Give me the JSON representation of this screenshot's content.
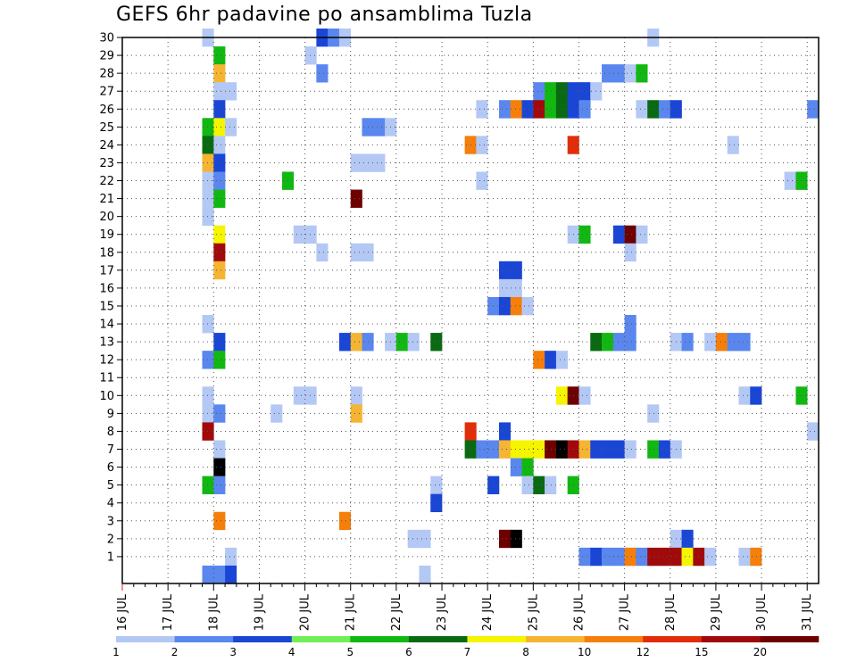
{
  "title": "GEFS 6hr padavine po ansamblima Tuzla",
  "chart_data": {
    "type": "heatmap",
    "title": "GEFS 6hr padavine po ansamblima Tuzla",
    "xlabel": "",
    "ylabel": "",
    "x_start": "16 JUL 00Z",
    "x_step_hours": 6,
    "x_ticks": [
      "16 JUL",
      "17 JUL",
      "18 JUL",
      "19 JUL",
      "20 JUL",
      "21 JUL",
      "22 JUL",
      "23 JUL",
      "24 JUL",
      "25 JUL",
      "26 JUL",
      "27 JUL",
      "28 JUL",
      "29 JUL",
      "30 JUL",
      "31 JUL"
    ],
    "y_ticks": [
      "1",
      "2",
      "3",
      "4",
      "5",
      "6",
      "7",
      "8",
      "9",
      "10",
      "11",
      "12",
      "13",
      "14",
      "15",
      "16",
      "17",
      "18",
      "19",
      "20",
      "21",
      "22",
      "23",
      "24",
      "25",
      "26",
      "27",
      "28",
      "29",
      "30"
    ],
    "grid": true,
    "colorbar": {
      "labels": [
        "1",
        "2",
        "3",
        "4",
        "5",
        "6",
        "7",
        "8",
        "10",
        "12",
        "15",
        "20"
      ],
      "colors": [
        "#b4c8f5",
        "#5a87ee",
        "#1a46d6",
        "#71ee55",
        "#12b812",
        "#0a6a12",
        "#f5f500",
        "#f5b432",
        "#f57f0a",
        "#e22d0a",
        "#a10a0a",
        "#6e0000"
      ]
    },
    "cells": [
      {
        "m": 30,
        "t": [
          [
            7,
            1
          ],
          [
            17,
            3
          ],
          [
            18,
            2
          ],
          [
            19,
            1
          ],
          [
            46,
            1
          ]
        ]
      },
      {
        "m": 29,
        "t": [
          [
            8,
            5
          ],
          [
            16,
            1
          ]
        ]
      },
      {
        "m": 28,
        "t": [
          [
            8,
            8
          ],
          [
            17,
            2
          ],
          [
            42,
            2
          ],
          [
            43,
            2
          ],
          [
            44,
            1
          ],
          [
            45,
            5
          ]
        ]
      },
      {
        "m": 27,
        "t": [
          [
            8,
            1
          ],
          [
            9,
            1
          ],
          [
            36,
            2
          ],
          [
            37,
            5
          ],
          [
            38,
            6
          ],
          [
            39,
            3
          ],
          [
            40,
            3
          ],
          [
            41,
            1
          ]
        ]
      },
      {
        "m": 26,
        "t": [
          [
            8,
            3
          ],
          [
            31,
            1
          ],
          [
            33,
            2
          ],
          [
            34,
            9
          ],
          [
            35,
            3
          ],
          [
            36,
            11
          ],
          [
            37,
            5
          ],
          [
            38,
            6
          ],
          [
            39,
            3
          ],
          [
            40,
            2
          ],
          [
            45,
            1
          ],
          [
            46,
            6
          ],
          [
            47,
            2
          ],
          [
            48,
            3
          ],
          [
            60,
            2
          ]
        ]
      },
      {
        "m": 25,
        "t": [
          [
            7,
            5
          ],
          [
            8,
            7
          ],
          [
            9,
            1
          ],
          [
            21,
            2
          ],
          [
            22,
            2
          ],
          [
            23,
            1
          ]
        ]
      },
      {
        "m": 24,
        "t": [
          [
            7,
            6
          ],
          [
            8,
            1
          ],
          [
            30,
            9
          ],
          [
            31,
            1
          ],
          [
            39,
            10
          ],
          [
            53,
            1
          ]
        ]
      },
      {
        "m": 23,
        "t": [
          [
            7,
            8
          ],
          [
            8,
            3
          ],
          [
            20,
            1
          ],
          [
            21,
            1
          ],
          [
            22,
            1
          ]
        ]
      },
      {
        "m": 22,
        "t": [
          [
            7,
            1
          ],
          [
            8,
            2
          ],
          [
            14,
            5
          ],
          [
            31,
            1
          ],
          [
            58,
            1
          ],
          [
            59,
            5
          ]
        ]
      },
      {
        "m": 21,
        "t": [
          [
            7,
            1
          ],
          [
            8,
            5
          ],
          [
            20,
            12
          ]
        ]
      },
      {
        "m": 20,
        "t": [
          [
            7,
            1
          ]
        ]
      },
      {
        "m": 19,
        "t": [
          [
            8,
            7
          ],
          [
            15,
            1
          ],
          [
            16,
            1
          ],
          [
            39,
            1
          ],
          [
            40,
            5
          ],
          [
            43,
            3
          ],
          [
            44,
            12
          ],
          [
            45,
            1
          ]
        ]
      },
      {
        "m": 18,
        "t": [
          [
            8,
            11
          ],
          [
            17,
            1
          ],
          [
            20,
            1
          ],
          [
            21,
            1
          ],
          [
            44,
            1
          ]
        ]
      },
      {
        "m": 17,
        "t": [
          [
            8,
            8
          ],
          [
            33,
            3
          ],
          [
            34,
            3
          ]
        ]
      },
      {
        "m": 16,
        "t": [
          [
            33,
            1
          ],
          [
            34,
            1
          ]
        ]
      },
      {
        "m": 15,
        "t": [
          [
            32,
            2
          ],
          [
            33,
            3
          ],
          [
            34,
            9
          ],
          [
            35,
            1
          ]
        ]
      },
      {
        "m": 14,
        "t": [
          [
            7,
            1
          ],
          [
            44,
            2
          ]
        ]
      },
      {
        "m": 13,
        "t": [
          [
            8,
            3
          ],
          [
            19,
            3
          ],
          [
            20,
            8
          ],
          [
            21,
            2
          ],
          [
            23,
            1
          ],
          [
            24,
            5
          ],
          [
            25,
            1
          ],
          [
            27,
            6
          ],
          [
            41,
            6
          ],
          [
            42,
            5
          ],
          [
            43,
            2
          ],
          [
            44,
            2
          ],
          [
            48,
            1
          ],
          [
            49,
            2
          ],
          [
            51,
            1
          ],
          [
            52,
            9
          ],
          [
            53,
            2
          ],
          [
            54,
            2
          ]
        ]
      },
      {
        "m": 12,
        "t": [
          [
            7,
            2
          ],
          [
            8,
            5
          ],
          [
            36,
            9
          ],
          [
            37,
            3
          ],
          [
            38,
            1
          ]
        ]
      },
      {
        "m": 10,
        "t": [
          [
            7,
            1
          ],
          [
            15,
            1
          ],
          [
            16,
            1
          ],
          [
            20,
            1
          ],
          [
            38,
            7
          ],
          [
            39,
            12
          ],
          [
            40,
            1
          ],
          [
            54,
            1
          ],
          [
            55,
            3
          ],
          [
            59,
            5
          ]
        ]
      },
      {
        "m": 9,
        "t": [
          [
            7,
            1
          ],
          [
            8,
            2
          ],
          [
            13,
            1
          ],
          [
            20,
            8
          ],
          [
            46,
            1
          ]
        ]
      },
      {
        "m": 8,
        "t": [
          [
            7,
            11
          ],
          [
            30,
            10
          ],
          [
            33,
            3
          ],
          [
            60,
            1
          ]
        ]
      },
      {
        "m": 7,
        "t": [
          [
            8,
            1
          ],
          [
            30,
            6
          ],
          [
            31,
            2
          ],
          [
            32,
            2
          ],
          [
            33,
            8
          ],
          [
            34,
            7
          ],
          [
            35,
            7
          ],
          [
            36,
            7
          ],
          [
            37,
            12
          ],
          [
            38,
            13
          ],
          [
            39,
            11
          ],
          [
            40,
            8
          ],
          [
            41,
            3
          ],
          [
            42,
            3
          ],
          [
            43,
            3
          ],
          [
            44,
            1
          ],
          [
            46,
            5
          ],
          [
            47,
            3
          ],
          [
            48,
            1
          ]
        ]
      },
      {
        "m": 6,
        "t": [
          [
            8,
            13
          ],
          [
            34,
            2
          ],
          [
            35,
            5
          ]
        ]
      },
      {
        "m": 5,
        "t": [
          [
            7,
            5
          ],
          [
            8,
            2
          ],
          [
            27,
            1
          ],
          [
            32,
            3
          ],
          [
            35,
            1
          ],
          [
            36,
            6
          ],
          [
            37,
            1
          ],
          [
            39,
            5
          ]
        ]
      },
      {
        "m": 4,
        "t": [
          [
            27,
            3
          ]
        ]
      },
      {
        "m": 3,
        "t": [
          [
            8,
            9
          ],
          [
            19,
            9
          ]
        ]
      },
      {
        "m": 2,
        "t": [
          [
            25,
            1
          ],
          [
            26,
            1
          ],
          [
            33,
            12
          ],
          [
            34,
            13
          ],
          [
            48,
            1
          ],
          [
            49,
            3
          ]
        ]
      },
      {
        "m": 1,
        "t": [
          [
            9,
            1
          ],
          [
            40,
            2
          ],
          [
            41,
            3
          ],
          [
            42,
            2
          ],
          [
            43,
            2
          ],
          [
            44,
            9
          ],
          [
            45,
            2
          ],
          [
            46,
            11
          ],
          [
            47,
            11
          ],
          [
            48,
            11
          ],
          [
            49,
            7
          ],
          [
            50,
            11
          ],
          [
            51,
            1
          ],
          [
            54,
            1
          ],
          [
            55,
            9
          ]
        ]
      },
      {
        "m": 0,
        "t": [
          [
            7,
            2
          ],
          [
            8,
            2
          ],
          [
            9,
            3
          ],
          [
            26,
            1
          ]
        ]
      }
    ]
  }
}
